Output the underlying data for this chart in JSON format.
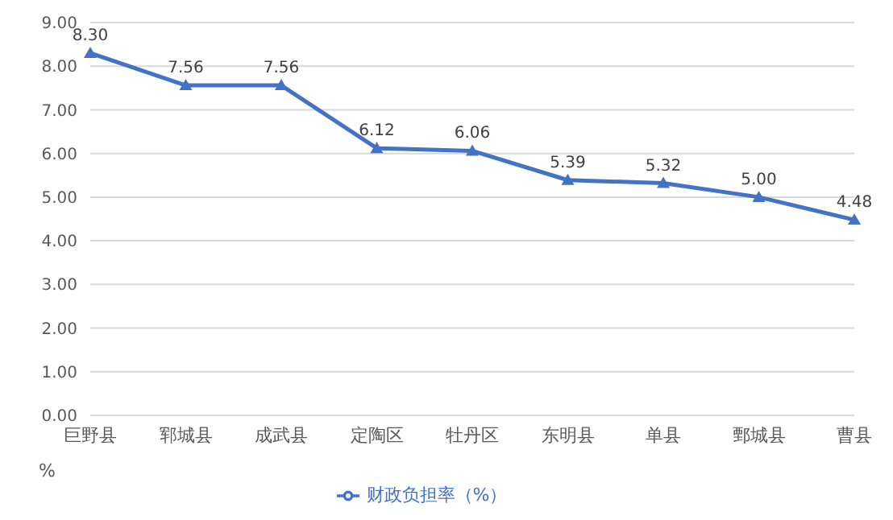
{
  "chart_data": {
    "type": "line",
    "categories": [
      "巨野县",
      "郓城县",
      "成武县",
      "定陶区",
      "牡丹区",
      "东明县",
      "单县",
      "鄄城县",
      "曹县"
    ],
    "series": [
      {
        "name": "财政负担率（%）",
        "color": "#4472c4",
        "values": [
          8.3,
          7.56,
          7.56,
          6.12,
          6.06,
          5.39,
          5.32,
          5.0,
          4.48
        ],
        "value_labels": [
          "8.30",
          "7.56",
          "7.56",
          "6.12",
          "6.06",
          "5.39",
          "5.32",
          "5.00",
          "4.48"
        ]
      }
    ],
    "ylabel": "%",
    "ylim": [
      0,
      9
    ],
    "yticks": [
      {
        "value": 0,
        "label": "0.00"
      },
      {
        "value": 1,
        "label": "1.00"
      },
      {
        "value": 2,
        "label": "2.00"
      },
      {
        "value": 3,
        "label": "3.00"
      },
      {
        "value": 4,
        "label": "4.00"
      },
      {
        "value": 5,
        "label": "5.00"
      },
      {
        "value": 6,
        "label": "6.00"
      },
      {
        "value": 7,
        "label": "7.00"
      },
      {
        "value": 8,
        "label": "8.00"
      },
      {
        "value": 9,
        "label": "9.00"
      }
    ],
    "grid": "y",
    "legend": "bottom",
    "marker": "triangle",
    "line_style": "solid"
  }
}
